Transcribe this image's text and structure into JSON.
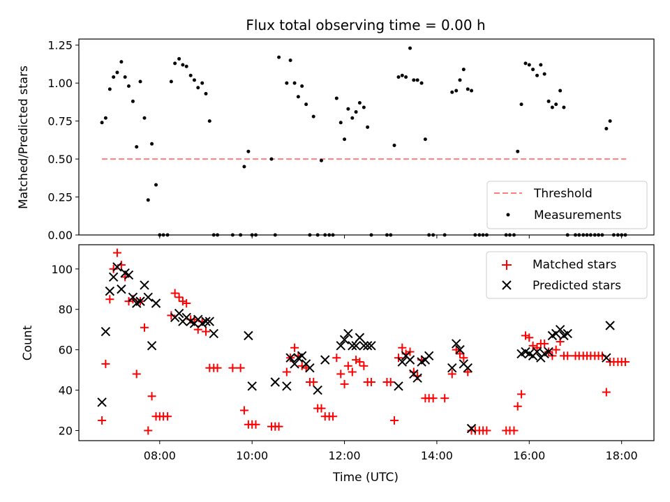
{
  "figure_title": "Flux total observing time = 0.00 h",
  "colors": {
    "threshold": "#ff7f7f",
    "measurements": "#000000",
    "matched": "#ff0000",
    "predicted": "#000000"
  },
  "chart_data": [
    {
      "type": "scatter",
      "title": "Flux total observing time = 0.00 h",
      "ylabel": "Matched/Predicted stars",
      "xlabel": "",
      "xunit": "hours (UTC)",
      "xlim": [
        6.25,
        18.7
      ],
      "ylim": [
        0,
        1.29
      ],
      "yticks": [
        0,
        0.25,
        0.5,
        0.75,
        1.0,
        1.25
      ],
      "ytick_labels": [
        "0.00",
        "0.25",
        "0.50",
        "0.75",
        "1.00",
        "1.25"
      ],
      "legend_position": "lower right",
      "legend": [
        "Threshold",
        "Measurements"
      ],
      "threshold": {
        "name": "Threshold",
        "y": 0.5,
        "x_range": [
          6.75,
          18.1
        ]
      },
      "measurements": {
        "name": "Measurements",
        "x": [
          6.75,
          6.83,
          6.92,
          7.0,
          7.08,
          7.17,
          7.25,
          7.33,
          7.42,
          7.5,
          7.58,
          7.67,
          7.75,
          7.83,
          7.92,
          8.0,
          8.08,
          8.17,
          8.25,
          8.33,
          8.42,
          8.5,
          8.58,
          8.67,
          8.75,
          8.83,
          8.92,
          9.0,
          9.08,
          9.17,
          9.25,
          9.58,
          9.75,
          9.83,
          9.92,
          10.0,
          10.08,
          10.42,
          10.5,
          10.58,
          10.75,
          10.83,
          10.92,
          11.0,
          11.08,
          11.17,
          11.25,
          11.33,
          11.42,
          11.5,
          11.58,
          11.67,
          11.75,
          11.83,
          11.92,
          12.0,
          12.08,
          12.17,
          12.25,
          12.33,
          12.42,
          12.5,
          12.58,
          12.92,
          13.0,
          13.08,
          13.17,
          13.25,
          13.33,
          13.42,
          13.5,
          13.58,
          13.67,
          13.75,
          13.83,
          13.92,
          14.17,
          14.33,
          14.42,
          14.5,
          14.58,
          14.67,
          14.75,
          14.83,
          14.92,
          15.0,
          15.08,
          15.5,
          15.58,
          15.67,
          15.75,
          15.83,
          15.92,
          16.0,
          16.08,
          16.17,
          16.25,
          16.33,
          16.42,
          16.5,
          16.58,
          16.67,
          16.75,
          16.83,
          17.0,
          17.08,
          17.17,
          17.25,
          17.33,
          17.42,
          17.5,
          17.58,
          17.67,
          17.75,
          17.83,
          17.92,
          18.0,
          18.08
        ],
        "y": [
          0.74,
          0.77,
          0.96,
          1.04,
          1.07,
          1.14,
          1.04,
          0.98,
          0.88,
          0.58,
          1.01,
          0.77,
          0.23,
          0.6,
          0.33,
          0.0,
          0.0,
          0.0,
          1.01,
          1.13,
          1.16,
          1.12,
          1.11,
          1.05,
          1.02,
          0.97,
          1.0,
          0.93,
          0.75,
          0.0,
          0.0,
          0.0,
          0.0,
          0.45,
          0.55,
          0.0,
          0.0,
          0.5,
          0.0,
          1.17,
          1.0,
          1.15,
          1.0,
          0.91,
          0.98,
          0.86,
          0.0,
          0.78,
          0.0,
          0.49,
          0.0,
          0.0,
          0.0,
          0.9,
          0.74,
          0.63,
          0.83,
          0.77,
          0.81,
          0.87,
          0.84,
          0.71,
          0.0,
          0.0,
          0.0,
          0.59,
          1.04,
          1.05,
          1.04,
          1.23,
          1.02,
          1.02,
          1.0,
          0.63,
          0.0,
          0.0,
          0.0,
          0.94,
          0.95,
          1.02,
          1.09,
          0.96,
          0.95,
          0.0,
          0.0,
          0.0,
          0.0,
          0.0,
          0.0,
          0.0,
          0.55,
          0.86,
          1.13,
          1.12,
          1.09,
          1.05,
          1.12,
          1.06,
          0.88,
          0.84,
          0.86,
          0.95,
          0.84,
          0.0,
          0.0,
          0.0,
          0.0,
          0.0,
          0.0,
          0.0,
          0.0,
          0.0,
          0.7,
          0.75,
          0.0,
          0.0,
          0.0,
          0.0
        ]
      }
    },
    {
      "type": "scatter",
      "title": "",
      "ylabel": "Count",
      "xlabel": "Time (UTC)",
      "xunit": "hours (UTC)",
      "xlim": [
        6.25,
        18.7
      ],
      "xticks": [
        8,
        10,
        12,
        14,
        16,
        18
      ],
      "xtick_labels": [
        "08:00",
        "10:00",
        "12:00",
        "14:00",
        "16:00",
        "18:00"
      ],
      "ylim": [
        15,
        112
      ],
      "yticks": [
        20,
        40,
        60,
        80,
        100
      ],
      "ytick_labels": [
        "20",
        "40",
        "60",
        "80",
        "100"
      ],
      "legend_position": "upper right",
      "legend": [
        "Matched stars",
        "Predicted stars"
      ],
      "series": [
        {
          "name": "Matched stars",
          "marker": "plus",
          "x": [
            6.75,
            6.83,
            6.92,
            7.0,
            7.08,
            7.17,
            7.25,
            7.33,
            7.42,
            7.5,
            7.58,
            7.67,
            7.75,
            7.83,
            7.92,
            8.0,
            8.08,
            8.17,
            8.25,
            8.33,
            8.42,
            8.5,
            8.58,
            8.67,
            8.75,
            8.83,
            8.92,
            9.0,
            9.08,
            9.17,
            9.25,
            9.58,
            9.75,
            9.83,
            9.92,
            10.0,
            10.08,
            10.42,
            10.5,
            10.58,
            10.75,
            10.83,
            10.92,
            11.0,
            11.08,
            11.17,
            11.25,
            11.33,
            11.42,
            11.5,
            11.58,
            11.67,
            11.75,
            11.83,
            11.92,
            12.0,
            12.08,
            12.17,
            12.25,
            12.33,
            12.42,
            12.5,
            12.58,
            12.92,
            13.0,
            13.08,
            13.17,
            13.25,
            13.33,
            13.42,
            13.5,
            13.58,
            13.67,
            13.75,
            13.83,
            13.92,
            14.17,
            14.33,
            14.42,
            14.5,
            14.58,
            14.67,
            14.75,
            14.83,
            14.92,
            15.0,
            15.08,
            15.5,
            15.58,
            15.67,
            15.75,
            15.83,
            15.92,
            16.0,
            16.08,
            16.17,
            16.25,
            16.33,
            16.42,
            16.5,
            16.58,
            16.67,
            16.75,
            16.83,
            17.0,
            17.08,
            17.17,
            17.25,
            17.33,
            17.42,
            17.5,
            17.58,
            17.67,
            17.75,
            17.83,
            17.92,
            18.0,
            18.08
          ],
          "y": [
            25,
            53,
            85,
            100,
            108,
            102,
            96,
            84,
            85,
            48,
            84,
            71,
            20,
            37,
            27,
            27,
            27,
            27,
            77,
            88,
            86,
            84,
            83,
            75,
            75,
            70,
            74,
            69,
            51,
            51,
            51,
            51,
            51,
            30,
            23,
            23,
            23,
            22,
            22,
            22,
            49,
            56,
            61,
            57,
            52,
            51,
            44,
            44,
            31,
            31,
            27,
            27,
            27,
            56,
            48,
            43,
            52,
            49,
            55,
            54,
            52,
            44,
            44,
            44,
            44,
            25,
            56,
            61,
            58,
            59,
            49,
            47,
            55,
            36,
            36,
            36,
            36,
            48,
            60,
            58,
            56,
            49,
            20,
            20,
            20,
            20,
            20,
            20,
            20,
            20,
            32,
            38,
            67,
            66,
            62,
            61,
            63,
            63,
            59,
            57,
            60,
            64,
            57,
            57,
            57,
            57,
            57,
            57,
            57,
            57,
            57,
            57,
            39,
            54,
            54,
            54,
            54,
            54
          ]
        },
        {
          "name": "Predicted stars",
          "marker": "cross",
          "x": [
            6.75,
            6.83,
            6.92,
            7.0,
            7.08,
            7.17,
            7.25,
            7.33,
            7.42,
            7.5,
            7.58,
            7.67,
            7.75,
            7.83,
            7.92,
            8.33,
            8.42,
            8.5,
            8.58,
            8.67,
            8.75,
            8.83,
            8.92,
            9.0,
            9.08,
            9.17,
            9.92,
            10.0,
            10.5,
            10.75,
            10.83,
            10.92,
            11.0,
            11.08,
            11.17,
            11.25,
            11.42,
            11.58,
            11.92,
            12.0,
            12.08,
            12.17,
            12.25,
            12.33,
            12.42,
            12.5,
            12.58,
            13.17,
            13.25,
            13.33,
            13.42,
            13.5,
            13.58,
            13.67,
            13.75,
            13.83,
            14.33,
            14.42,
            14.5,
            14.58,
            14.67,
            14.75,
            15.83,
            15.92,
            16.0,
            16.08,
            16.17,
            16.25,
            16.33,
            16.42,
            16.5,
            16.58,
            16.67,
            16.75,
            16.83,
            17.67,
            17.75
          ],
          "y": [
            34,
            69,
            89,
            96,
            101,
            90,
            98,
            97,
            86,
            83,
            84,
            92,
            86,
            62,
            83,
            76,
            78,
            74,
            76,
            74,
            73,
            75,
            73,
            74,
            74,
            68,
            67,
            42,
            44,
            42,
            56,
            53,
            56,
            57,
            53,
            51,
            40,
            55,
            62,
            65,
            68,
            62,
            62,
            66,
            62,
            62,
            62,
            42,
            54,
            57,
            55,
            48,
            46,
            54,
            55,
            57,
            51,
            63,
            60,
            53,
            51,
            21,
            58,
            59,
            58,
            57,
            59,
            56,
            58,
            59,
            67,
            68,
            70,
            67,
            68,
            56,
            72
          ]
        }
      ]
    }
  ]
}
